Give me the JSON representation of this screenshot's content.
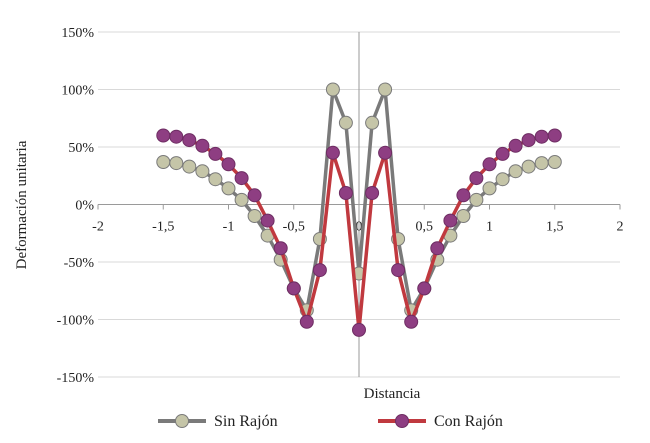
{
  "chart_data": {
    "type": "line",
    "xlabel": "Distancia",
    "ylabel": "Deformación unitaria",
    "xlim": [
      -2,
      2
    ],
    "ylim": [
      -150,
      150
    ],
    "x_ticks": [
      "-2",
      "-1,5",
      "-1",
      "-0,5",
      "0",
      "0,5",
      "1",
      "1,5",
      "2"
    ],
    "y_ticks": [
      "150%",
      "100%",
      "50%",
      "0%",
      "-50%",
      "-100%",
      "-150%"
    ],
    "grid": "horizontal",
    "legend": "bottom",
    "series": [
      {
        "name": "Sin Rajón",
        "line_color": "#7a7a7a",
        "marker_color": "#c5c5a8",
        "points": [
          [
            -1.5,
            37
          ],
          [
            -1.4,
            36
          ],
          [
            -1.3,
            33
          ],
          [
            -1.2,
            29
          ],
          [
            -1.1,
            22
          ],
          [
            -1.0,
            14
          ],
          [
            -0.9,
            4
          ],
          [
            -0.8,
            -10
          ],
          [
            -0.7,
            -27
          ],
          [
            -0.6,
            -48
          ],
          [
            -0.5,
            -73
          ],
          [
            -0.4,
            -92
          ],
          [
            -0.3,
            -30
          ],
          [
            -0.2,
            100
          ],
          [
            -0.1,
            71
          ],
          [
            0.0,
            -60
          ],
          [
            0.1,
            71
          ],
          [
            0.2,
            100
          ],
          [
            0.3,
            -30
          ],
          [
            0.4,
            -92
          ],
          [
            0.5,
            -73
          ],
          [
            0.6,
            -48
          ],
          [
            0.7,
            -27
          ],
          [
            0.8,
            -10
          ],
          [
            0.9,
            4
          ],
          [
            1.0,
            14
          ],
          [
            1.1,
            22
          ],
          [
            1.2,
            29
          ],
          [
            1.3,
            33
          ],
          [
            1.4,
            36
          ],
          [
            1.5,
            37
          ]
        ]
      },
      {
        "name": "Con Rajón",
        "line_color": "#c0393f",
        "marker_color": "#8e3e82",
        "points": [
          [
            -1.5,
            60
          ],
          [
            -1.4,
            59
          ],
          [
            -1.3,
            56
          ],
          [
            -1.2,
            51
          ],
          [
            -1.1,
            44
          ],
          [
            -1.0,
            35
          ],
          [
            -0.9,
            23
          ],
          [
            -0.8,
            8
          ],
          [
            -0.7,
            -14
          ],
          [
            -0.6,
            -38
          ],
          [
            -0.5,
            -73
          ],
          [
            -0.4,
            -102
          ],
          [
            -0.3,
            -57
          ],
          [
            -0.2,
            45
          ],
          [
            -0.1,
            10
          ],
          [
            0.0,
            -109
          ],
          [
            0.1,
            10
          ],
          [
            0.2,
            45
          ],
          [
            0.3,
            -57
          ],
          [
            0.4,
            -102
          ],
          [
            0.5,
            -73
          ],
          [
            0.6,
            -38
          ],
          [
            0.7,
            -14
          ],
          [
            0.8,
            8
          ],
          [
            0.9,
            23
          ],
          [
            1.0,
            35
          ],
          [
            1.1,
            44
          ],
          [
            1.2,
            51
          ],
          [
            1.3,
            56
          ],
          [
            1.4,
            59
          ],
          [
            1.5,
            60
          ]
        ]
      }
    ]
  }
}
